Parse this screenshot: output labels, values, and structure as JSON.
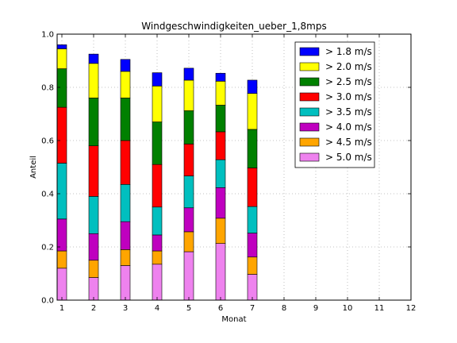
{
  "chart_data": {
    "type": "bar",
    "stacked": true,
    "title": "Windgeschwindigkeiten_ueber_1,8mps",
    "xlabel": "Monat",
    "ylabel": "Anteil",
    "xlim": [
      0.85,
      12
    ],
    "ylim": [
      0,
      1.0
    ],
    "x_ticks": [
      "1",
      "2",
      "3",
      "4",
      "5",
      "6",
      "7",
      "8",
      "9",
      "10",
      "11",
      "12"
    ],
    "y_ticks": [
      "0.0",
      "0.2",
      "0.4",
      "0.6",
      "0.8",
      "1.0"
    ],
    "grid": true,
    "legend_position": "top-right",
    "categories": [
      1,
      2,
      3,
      4,
      5,
      6,
      7
    ],
    "series": [
      {
        "name": "> 5.0 m/s",
        "color": "#ee82ee",
        "values": [
          0.12,
          0.085,
          0.13,
          0.135,
          0.182,
          0.213,
          0.097
        ]
      },
      {
        "name": "> 4.5 m/s",
        "color": "#ffa500",
        "values": [
          0.065,
          0.065,
          0.06,
          0.05,
          0.075,
          0.095,
          0.065
        ]
      },
      {
        "name": "> 4.0 m/s",
        "color": "#bf00bf",
        "values": [
          0.12,
          0.1,
          0.105,
          0.06,
          0.09,
          0.115,
          0.09
        ]
      },
      {
        "name": "> 3.5 m/s",
        "color": "#00bfbf",
        "values": [
          0.21,
          0.14,
          0.14,
          0.105,
          0.12,
          0.105,
          0.1
        ]
      },
      {
        "name": "> 3.0 m/s",
        "color": "#ff0000",
        "values": [
          0.21,
          0.19,
          0.165,
          0.16,
          0.12,
          0.105,
          0.145
        ]
      },
      {
        "name": "> 2.5 m/s",
        "color": "#008000",
        "values": [
          0.145,
          0.18,
          0.16,
          0.16,
          0.125,
          0.1,
          0.145
        ]
      },
      {
        "name": "> 2.0 m/s",
        "color": "#ffff00",
        "values": [
          0.075,
          0.13,
          0.1,
          0.135,
          0.115,
          0.09,
          0.135
        ]
      },
      {
        "name": "> 1.8 m/s",
        "color": "#0000ff",
        "values": [
          0.015,
          0.035,
          0.045,
          0.05,
          0.045,
          0.03,
          0.05
        ]
      }
    ]
  }
}
